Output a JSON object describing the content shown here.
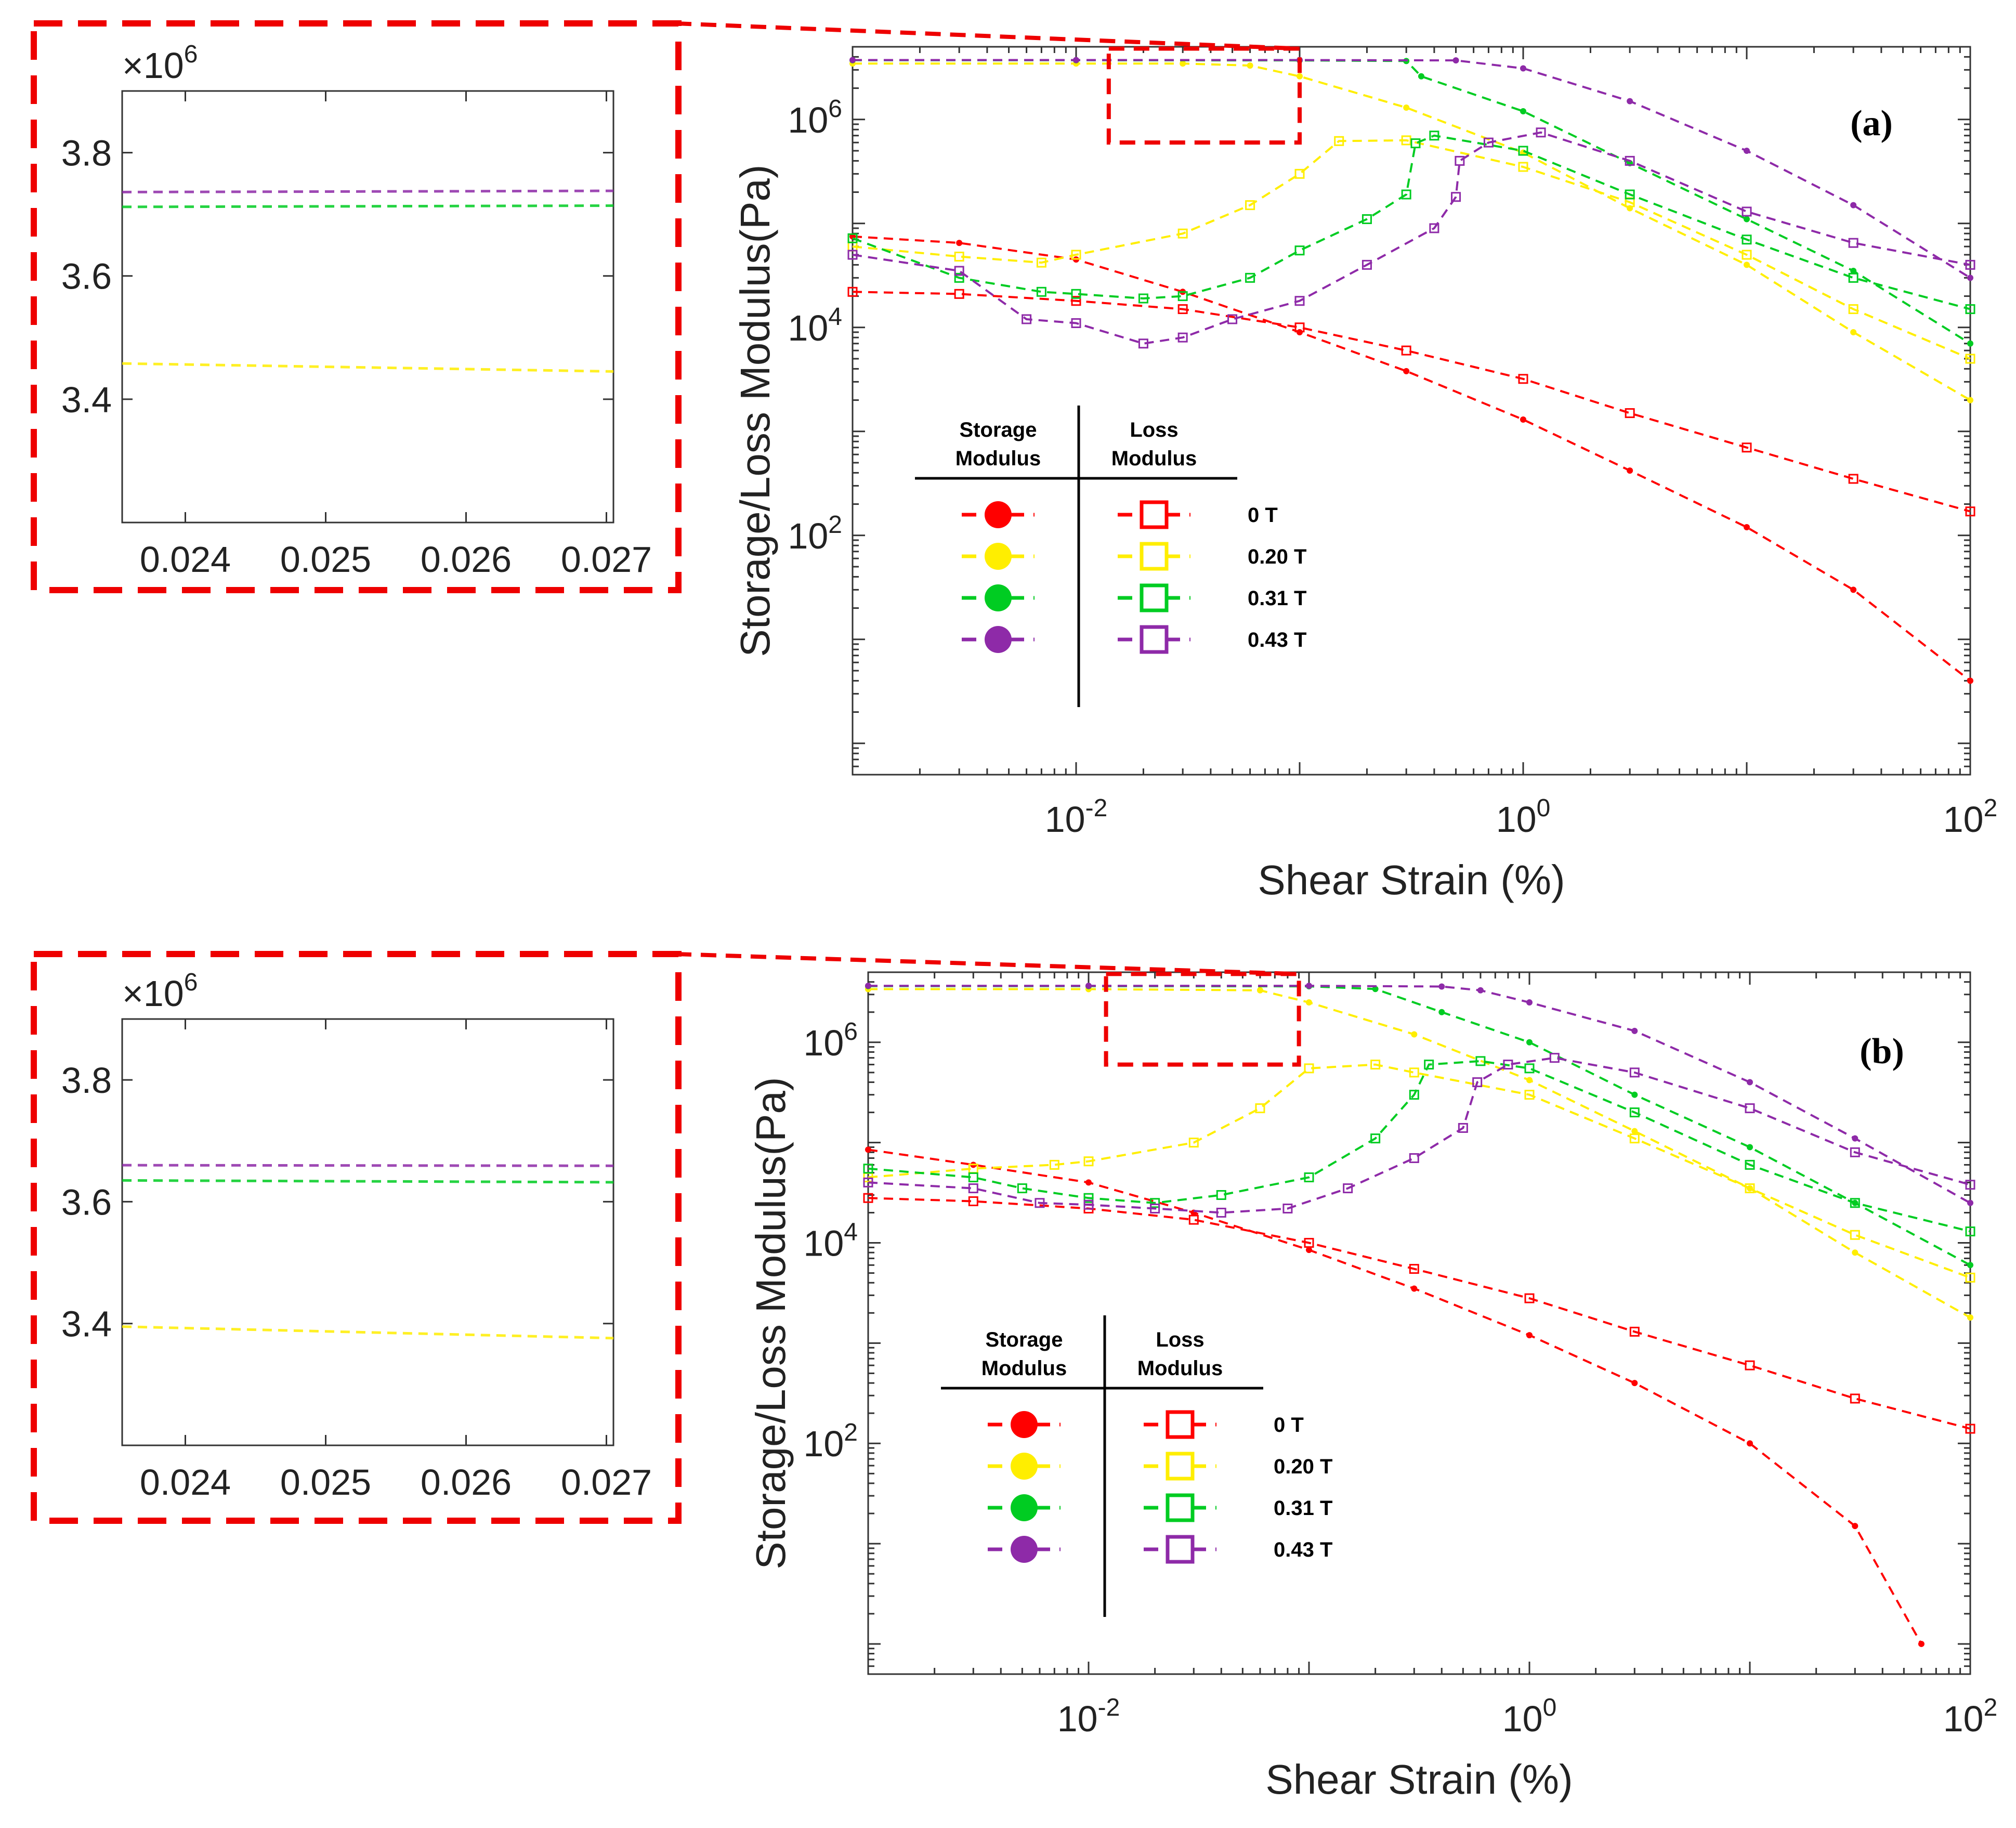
{
  "figure": {
    "description": "Storage and loss modulus vs. shear strain under magnetic fields"
  },
  "colors": {
    "0 T": "#ff0000",
    "0.20 T": "#ffee00",
    "0.31 T": "#00cc22",
    "0.43 T": "#8e2aa8",
    "zoom_box": "#ee0000"
  },
  "chart_data": [
    {
      "panel": "(a)",
      "type": "line",
      "xscale": "log",
      "yscale": "log",
      "xlabel": "Shear Strain (%)",
      "ylabel": "Storage/Loss Modulus(Pa)",
      "xlim": [
        0.001,
        100
      ],
      "ylim": [
        0.5,
        5000000
      ],
      "x_ticks": [
        {
          "base": "10",
          "exp": "-2",
          "value": 0.01
        },
        {
          "base": "10",
          "exp": "0",
          "value": 1
        },
        {
          "base": "10",
          "exp": "2",
          "value": 100
        }
      ],
      "y_ticks": [
        {
          "base": "10",
          "exp": "2",
          "value": 100
        },
        {
          "base": "10",
          "exp": "4",
          "value": 10000
        },
        {
          "base": "10",
          "exp": "6",
          "value": 1000000
        }
      ],
      "legend": {
        "storage_header": [
          "Storage",
          "Modulus"
        ],
        "loss_header": [
          "Loss",
          "Modulus"
        ],
        "entries": [
          "0 T",
          "0.20 T",
          "0.31 T",
          "0.43 T"
        ]
      },
      "zoom_region": {
        "x": [
          0.014,
          0.1
        ],
        "y": [
          600000,
          4800000
        ]
      },
      "series": [
        {
          "name": "0 T",
          "modulus": "storage",
          "points": [
            [
              0.001,
              75000
            ],
            [
              0.003,
              65000
            ],
            [
              0.01,
              45000
            ],
            [
              0.03,
              22000
            ],
            [
              0.1,
              9000
            ],
            [
              0.3,
              3800
            ],
            [
              1,
              1300
            ],
            [
              3,
              420
            ],
            [
              10,
              120
            ],
            [
              30,
              30
            ],
            [
              100,
              4
            ]
          ]
        },
        {
          "name": "0 T",
          "modulus": "loss",
          "points": [
            [
              0.001,
              22000
            ],
            [
              0.003,
              21000
            ],
            [
              0.01,
              18000
            ],
            [
              0.03,
              15000
            ],
            [
              0.1,
              10000
            ],
            [
              0.3,
              6000
            ],
            [
              1,
              3200
            ],
            [
              3,
              1500
            ],
            [
              10,
              700
            ],
            [
              30,
              350
            ],
            [
              100,
              170
            ]
          ]
        },
        {
          "name": "0.20 T",
          "modulus": "storage",
          "points": [
            [
              0.001,
              3450000
            ],
            [
              0.01,
              3450000
            ],
            [
              0.03,
              3450000
            ],
            [
              0.06,
              3300000
            ],
            [
              0.1,
              2600000
            ],
            [
              0.3,
              1300000
            ],
            [
              1,
              480000
            ],
            [
              3,
              140000
            ],
            [
              10,
              40000
            ],
            [
              30,
              9000
            ],
            [
              100,
              2000
            ]
          ]
        },
        {
          "name": "0.20 T",
          "modulus": "loss",
          "points": [
            [
              0.001,
              60000
            ],
            [
              0.003,
              48000
            ],
            [
              0.007,
              42000
            ],
            [
              0.01,
              50000
            ],
            [
              0.03,
              80000
            ],
            [
              0.06,
              150000
            ],
            [
              0.1,
              300000
            ],
            [
              0.15,
              620000
            ],
            [
              0.3,
              630000
            ],
            [
              1,
              350000
            ],
            [
              3,
              160000
            ],
            [
              10,
              50000
            ],
            [
              30,
              15000
            ],
            [
              100,
              5000
            ]
          ]
        },
        {
          "name": "0.31 T",
          "modulus": "storage",
          "points": [
            [
              0.001,
              3710000
            ],
            [
              0.01,
              3710000
            ],
            [
              0.1,
              3700000
            ],
            [
              0.3,
              3650000
            ],
            [
              0.35,
              2600000
            ],
            [
              1,
              1200000
            ],
            [
              3,
              380000
            ],
            [
              10,
              110000
            ],
            [
              30,
              35000
            ],
            [
              100,
              7000
            ]
          ]
        },
        {
          "name": "0.31 T",
          "modulus": "loss",
          "points": [
            [
              0.001,
              72000
            ],
            [
              0.003,
              30000
            ],
            [
              0.007,
              22000
            ],
            [
              0.01,
              21000
            ],
            [
              0.02,
              19000
            ],
            [
              0.03,
              20000
            ],
            [
              0.06,
              30000
            ],
            [
              0.1,
              55000
            ],
            [
              0.2,
              110000
            ],
            [
              0.3,
              190000
            ],
            [
              0.33,
              590000
            ],
            [
              0.4,
              700000
            ],
            [
              1,
              500000
            ],
            [
              3,
              190000
            ],
            [
              10,
              70000
            ],
            [
              30,
              30000
            ],
            [
              100,
              15000
            ]
          ]
        },
        {
          "name": "0.43 T",
          "modulus": "storage",
          "points": [
            [
              0.001,
              3730000
            ],
            [
              0.01,
              3730000
            ],
            [
              0.1,
              3730000
            ],
            [
              0.5,
              3700000
            ],
            [
              1,
              3100000
            ],
            [
              3,
              1500000
            ],
            [
              10,
              500000
            ],
            [
              30,
              150000
            ],
            [
              100,
              30000
            ]
          ]
        },
        {
          "name": "0.43 T",
          "modulus": "loss",
          "points": [
            [
              0.001,
              50000
            ],
            [
              0.003,
              35000
            ],
            [
              0.006,
              12000
            ],
            [
              0.01,
              11000
            ],
            [
              0.02,
              7000
            ],
            [
              0.03,
              8000
            ],
            [
              0.05,
              12000
            ],
            [
              0.1,
              18000
            ],
            [
              0.2,
              40000
            ],
            [
              0.4,
              90000
            ],
            [
              0.5,
              180000
            ],
            [
              0.52,
              400000
            ],
            [
              0.7,
              600000
            ],
            [
              1.2,
              750000
            ],
            [
              3,
              400000
            ],
            [
              10,
              130000
            ],
            [
              30,
              65000
            ],
            [
              100,
              40000
            ]
          ]
        }
      ]
    },
    {
      "panel": "(b)",
      "type": "line",
      "xscale": "log",
      "yscale": "log",
      "xlabel": "Shear Strain (%)",
      "ylabel": "Storage/Loss Modulus(Pa)",
      "xlim": [
        0.001,
        100
      ],
      "ylim": [
        0.5,
        5000000
      ],
      "x_ticks": [
        {
          "base": "10",
          "exp": "-2",
          "value": 0.01
        },
        {
          "base": "10",
          "exp": "0",
          "value": 1
        },
        {
          "base": "10",
          "exp": "2",
          "value": 100
        }
      ],
      "y_ticks": [
        {
          "base": "10",
          "exp": "2",
          "value": 100
        },
        {
          "base": "10",
          "exp": "4",
          "value": 10000
        },
        {
          "base": "10",
          "exp": "6",
          "value": 1000000
        }
      ],
      "legend": {
        "storage_header": [
          "Storage",
          "Modulus"
        ],
        "loss_header": [
          "Loss",
          "Modulus"
        ],
        "entries": [
          "0 T",
          "0.20 T",
          "0.31 T",
          "0.43 T"
        ]
      },
      "zoom_region": {
        "x": [
          0.012,
          0.09
        ],
        "y": [
          600000,
          4800000
        ]
      },
      "series": [
        {
          "name": "0 T",
          "modulus": "storage",
          "points": [
            [
              0.001,
              85000
            ],
            [
              0.003,
              60000
            ],
            [
              0.01,
              40000
            ],
            [
              0.03,
              20000
            ],
            [
              0.1,
              8500
            ],
            [
              0.3,
              3500
            ],
            [
              1,
              1200
            ],
            [
              3,
              400
            ],
            [
              10,
              100
            ],
            [
              30,
              15
            ],
            [
              60,
              1
            ]
          ]
        },
        {
          "name": "0 T",
          "modulus": "loss",
          "points": [
            [
              0.001,
              28000
            ],
            [
              0.003,
              26000
            ],
            [
              0.01,
              22000
            ],
            [
              0.03,
              17000
            ],
            [
              0.1,
              10000
            ],
            [
              0.3,
              5500
            ],
            [
              1,
              2800
            ],
            [
              3,
              1300
            ],
            [
              10,
              600
            ],
            [
              30,
              280
            ],
            [
              100,
              140
            ]
          ]
        },
        {
          "name": "0.20 T",
          "modulus": "storage",
          "points": [
            [
              0.001,
              3390000
            ],
            [
              0.01,
              3390000
            ],
            [
              0.06,
              3300000
            ],
            [
              0.1,
              2500000
            ],
            [
              0.3,
              1200000
            ],
            [
              1,
              420000
            ],
            [
              3,
              130000
            ],
            [
              10,
              35000
            ],
            [
              30,
              8000
            ],
            [
              100,
              1800
            ]
          ]
        },
        {
          "name": "0.20 T",
          "modulus": "loss",
          "points": [
            [
              0.001,
              45000
            ],
            [
              0.003,
              55000
            ],
            [
              0.007,
              60000
            ],
            [
              0.01,
              65000
            ],
            [
              0.03,
              100000
            ],
            [
              0.06,
              220000
            ],
            [
              0.1,
              550000
            ],
            [
              0.2,
              600000
            ],
            [
              0.3,
              500000
            ],
            [
              1,
              300000
            ],
            [
              3,
              110000
            ],
            [
              10,
              35000
            ],
            [
              30,
              12000
            ],
            [
              100,
              4500
            ]
          ]
        },
        {
          "name": "0.31 T",
          "modulus": "storage",
          "points": [
            [
              0.001,
              3630000
            ],
            [
              0.01,
              3630000
            ],
            [
              0.1,
              3620000
            ],
            [
              0.2,
              3400000
            ],
            [
              0.4,
              2000000
            ],
            [
              1,
              1000000
            ],
            [
              3,
              300000
            ],
            [
              10,
              90000
            ],
            [
              30,
              25000
            ],
            [
              100,
              6000
            ]
          ]
        },
        {
          "name": "0.31 T",
          "modulus": "loss",
          "points": [
            [
              0.001,
              55000
            ],
            [
              0.003,
              45000
            ],
            [
              0.005,
              35000
            ],
            [
              0.01,
              28000
            ],
            [
              0.02,
              25000
            ],
            [
              0.04,
              30000
            ],
            [
              0.1,
              45000
            ],
            [
              0.2,
              110000
            ],
            [
              0.3,
              300000
            ],
            [
              0.35,
              600000
            ],
            [
              0.6,
              650000
            ],
            [
              1,
              550000
            ],
            [
              3,
              200000
            ],
            [
              10,
              60000
            ],
            [
              30,
              25000
            ],
            [
              100,
              13000
            ]
          ]
        },
        {
          "name": "0.43 T",
          "modulus": "storage",
          "points": [
            [
              0.001,
              3660000
            ],
            [
              0.01,
              3660000
            ],
            [
              0.1,
              3660000
            ],
            [
              0.4,
              3600000
            ],
            [
              0.6,
              3300000
            ],
            [
              1,
              2500000
            ],
            [
              3,
              1300000
            ],
            [
              10,
              400000
            ],
            [
              30,
              110000
            ],
            [
              100,
              25000
            ]
          ]
        },
        {
          "name": "0.43 T",
          "modulus": "loss",
          "points": [
            [
              0.001,
              40000
            ],
            [
              0.003,
              35000
            ],
            [
              0.006,
              25000
            ],
            [
              0.01,
              24000
            ],
            [
              0.02,
              22000
            ],
            [
              0.04,
              20000
            ],
            [
              0.08,
              22000
            ],
            [
              0.15,
              35000
            ],
            [
              0.3,
              70000
            ],
            [
              0.5,
              140000
            ],
            [
              0.58,
              400000
            ],
            [
              0.8,
              600000
            ],
            [
              1.3,
              700000
            ],
            [
              3,
              500000
            ],
            [
              10,
              220000
            ],
            [
              30,
              80000
            ],
            [
              100,
              38000
            ]
          ]
        }
      ]
    }
  ],
  "insets": [
    {
      "panel": "(a)",
      "multiplier_prefix": "×10",
      "multiplier_exp": "6",
      "xlim": [
        0.02355,
        0.02705
      ],
      "ylim": [
        3.2,
        3.9
      ],
      "x_ticks": [
        "0.024",
        "0.025",
        "0.026",
        "0.027"
      ],
      "y_ticks": [
        "3.8",
        "3.6",
        "3.4"
      ],
      "lines": [
        {
          "name": "0.43 T",
          "y0": 3.736,
          "y1": 3.738
        },
        {
          "name": "0.31 T",
          "y0": 3.712,
          "y1": 3.714
        },
        {
          "name": "0.20 T",
          "y0": 3.458,
          "y1": 3.445
        }
      ]
    },
    {
      "panel": "(b)",
      "multiplier_prefix": "×10",
      "multiplier_exp": "6",
      "xlim": [
        0.02355,
        0.02705
      ],
      "ylim": [
        3.2,
        3.9
      ],
      "x_ticks": [
        "0.024",
        "0.025",
        "0.026",
        "0.027"
      ],
      "y_ticks": [
        "3.8",
        "3.6",
        "3.4"
      ],
      "lines": [
        {
          "name": "0.43 T",
          "y0": 3.66,
          "y1": 3.659
        },
        {
          "name": "0.31 T",
          "y0": 3.635,
          "y1": 3.632
        },
        {
          "name": "0.20 T",
          "y0": 3.395,
          "y1": 3.376
        }
      ]
    }
  ]
}
